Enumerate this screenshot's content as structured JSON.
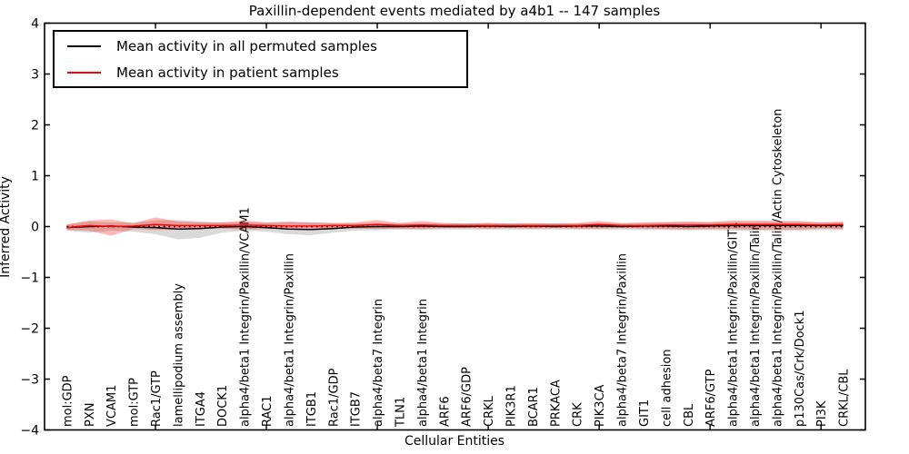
{
  "chart_data": {
    "type": "line",
    "title": "Paxillin-dependent events mediated by a4b1 -- 147 samples",
    "xlabel": "Cellular Entities",
    "ylabel": "Inferred Activity",
    "ylim": [
      -4,
      4
    ],
    "yticks": [
      4,
      3,
      2,
      1,
      0,
      -1,
      -2,
      -3,
      -4
    ],
    "ytick_labels": [
      "4",
      "3",
      "2",
      "1",
      "0",
      "−1",
      "−2",
      "−3",
      "−4"
    ],
    "grid": false,
    "legend_position": "upper left",
    "zero_line": {
      "y": 0,
      "style": "dotted",
      "color": "#000000"
    },
    "xtick_positions": [
      5,
      10,
      15,
      20,
      25,
      30,
      35
    ],
    "categories": [
      "mol:GDP",
      "PXN",
      "VCAM1",
      "mol:GTP",
      "Rac1/GTP",
      "lamellipodium assembly",
      "ITGA4",
      "DOCK1",
      "alpha4/beta1 Integrin/Paxillin/VCAM1",
      "RAC1",
      "alpha4/beta1 Integrin/Paxillin",
      "ITGB1",
      "Rac1/GDP",
      "ITGB7",
      "alpha4/beta7 Integrin",
      "TLN1",
      "alpha4/beta1 Integrin",
      "ARF6",
      "ARF6/GDP",
      "CRKL",
      "PIK3R1",
      "BCAR1",
      "PRKACA",
      "CRK",
      "PIK3CA",
      "alpha4/beta7 Integrin/Paxillin",
      "GIT1",
      "cell adhesion",
      "CBL",
      "ARF6/GTP",
      "alpha4/beta1 Integrin/Paxillin/GIT1",
      "alpha4/beta1 Integrin/Paxillin/Talin",
      "alpha4/beta1 Integrin/Paxillin/Talin/Actin Cytoskeleton",
      "p130Cas/Crk/Dock1",
      "PI3K",
      "CRKL/CBL"
    ],
    "series": [
      {
        "name": "Mean activity in all permuted samples",
        "color": "#000000",
        "band_color": "rgba(0,0,0,0.15)",
        "values": [
          -0.02,
          0.0,
          0.01,
          -0.01,
          -0.02,
          -0.05,
          -0.04,
          -0.01,
          0.0,
          -0.02,
          -0.05,
          -0.06,
          -0.04,
          -0.01,
          0.0,
          0.0,
          0.01,
          0.0,
          0.0,
          0.01,
          0.0,
          0.01,
          0.0,
          0.01,
          0.01,
          0.0,
          0.01,
          0.01,
          0.0,
          0.01,
          0.02,
          0.02,
          0.02,
          0.02,
          0.02,
          0.02
        ],
        "band_low": [
          -0.08,
          -0.12,
          -0.08,
          -0.1,
          -0.15,
          -0.25,
          -0.22,
          -0.12,
          -0.08,
          -0.1,
          -0.15,
          -0.17,
          -0.12,
          -0.08,
          -0.07,
          -0.06,
          -0.07,
          -0.06,
          -0.06,
          -0.06,
          -0.06,
          -0.06,
          -0.06,
          -0.06,
          -0.06,
          -0.06,
          -0.07,
          -0.07,
          -0.07,
          -0.07,
          -0.08,
          -0.08,
          -0.08,
          -0.08,
          -0.07,
          -0.07
        ],
        "band_high": [
          0.04,
          0.1,
          0.08,
          0.08,
          0.12,
          0.13,
          0.1,
          0.08,
          0.08,
          0.07,
          0.08,
          0.08,
          0.07,
          0.06,
          0.07,
          0.06,
          0.07,
          0.06,
          0.06,
          0.07,
          0.06,
          0.06,
          0.06,
          0.06,
          0.07,
          0.06,
          0.07,
          0.08,
          0.08,
          0.08,
          0.09,
          0.09,
          0.09,
          0.09,
          0.08,
          0.08
        ]
      },
      {
        "name": "Mean activity in patient samples",
        "color": "#ff0000",
        "band_color": "rgba(255,0,0,0.28)",
        "values": [
          -0.02,
          0.02,
          0.0,
          0.01,
          0.04,
          0.02,
          0.02,
          0.02,
          0.03,
          0.02,
          0.01,
          0.01,
          0.02,
          0.02,
          0.04,
          0.02,
          0.03,
          0.02,
          0.02,
          0.02,
          0.02,
          0.02,
          0.02,
          0.02,
          0.04,
          0.02,
          0.02,
          0.03,
          0.03,
          0.03,
          0.04,
          0.04,
          0.04,
          0.04,
          0.03,
          0.04
        ],
        "band_low": [
          -0.07,
          -0.08,
          -0.18,
          -0.05,
          -0.07,
          -0.06,
          -0.05,
          -0.04,
          -0.06,
          -0.05,
          -0.05,
          -0.04,
          -0.04,
          -0.04,
          -0.05,
          -0.04,
          -0.05,
          -0.03,
          -0.03,
          -0.04,
          -0.03,
          -0.04,
          -0.03,
          -0.04,
          -0.04,
          -0.03,
          -0.04,
          -0.05,
          -0.06,
          -0.05,
          -0.05,
          -0.06,
          -0.06,
          -0.06,
          -0.04,
          -0.05
        ],
        "band_high": [
          0.04,
          0.12,
          0.14,
          0.06,
          0.18,
          0.1,
          0.08,
          0.08,
          0.12,
          0.08,
          0.1,
          0.08,
          0.07,
          0.08,
          0.13,
          0.07,
          0.11,
          0.07,
          0.06,
          0.07,
          0.06,
          0.07,
          0.06,
          0.07,
          0.11,
          0.07,
          0.08,
          0.09,
          0.1,
          0.09,
          0.12,
          0.12,
          0.11,
          0.11,
          0.08,
          0.1
        ]
      }
    ]
  }
}
